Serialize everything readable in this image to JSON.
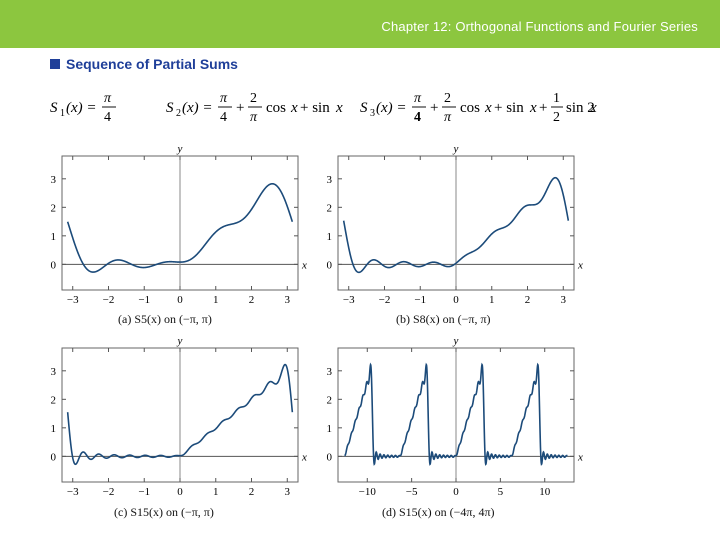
{
  "header": {
    "title": "Chapter 12: Orthogonal Functions and Fourier Series"
  },
  "section": {
    "title": "Sequence of Partial Sums"
  },
  "formulas": [
    "S1(x) = π/4",
    "S2(x) = π/4 + 2/π cos x + sin x",
    "S3(x) = π/4 + 2/π cos x + sin x + 1/2 sin 2x"
  ],
  "colors": {
    "header": "#8cc63f",
    "section": "#1f3f99",
    "curve": "#1c4b7a"
  },
  "chart_data": [
    {
      "type": "line",
      "function": "S5(x)",
      "xlim": [
        -3.3,
        3.3
      ],
      "ylim": [
        -0.9,
        3.8
      ],
      "xticks": [
        -3,
        -2,
        -1,
        0,
        1,
        2,
        3
      ],
      "yticks": [
        0,
        1,
        2,
        3
      ],
      "xlabel": "x",
      "ylabel": "y",
      "caption": "(a)  S5(x)  on  (−π,  π)",
      "terms": 5,
      "xmin": -3.1416,
      "xmax": 3.1416
    },
    {
      "type": "line",
      "function": "S8(x)",
      "xlim": [
        -3.3,
        3.3
      ],
      "ylim": [
        -0.9,
        3.8
      ],
      "xticks": [
        -3,
        -2,
        -1,
        0,
        1,
        2,
        3
      ],
      "yticks": [
        0,
        1,
        2,
        3
      ],
      "xlabel": "x",
      "ylabel": "y",
      "caption": "(b)  S8(x)  on  (−π,  π)",
      "terms": 8,
      "xmin": -3.1416,
      "xmax": 3.1416
    },
    {
      "type": "line",
      "function": "S15(x)",
      "xlim": [
        -3.3,
        3.3
      ],
      "ylim": [
        -0.9,
        3.8
      ],
      "xticks": [
        -3,
        -2,
        -1,
        0,
        1,
        2,
        3
      ],
      "yticks": [
        0,
        1,
        2,
        3
      ],
      "xlabel": "x",
      "ylabel": "y",
      "caption": "(c)  S15(x)  on  (−π,  π)",
      "terms": 15,
      "xmin": -3.1416,
      "xmax": 3.1416
    },
    {
      "type": "line",
      "function": "S15(x)",
      "xlim": [
        -13.3,
        13.3
      ],
      "ylim": [
        -0.9,
        3.8
      ],
      "xticks": [
        -10,
        -5,
        0,
        5,
        10
      ],
      "yticks": [
        0,
        1,
        2,
        3
      ],
      "xlabel": "x",
      "ylabel": "y",
      "caption": "(d)  S15(x)  on  (−4π,  4π)",
      "terms": 15,
      "xmin": -12.566,
      "xmax": 12.566
    }
  ]
}
